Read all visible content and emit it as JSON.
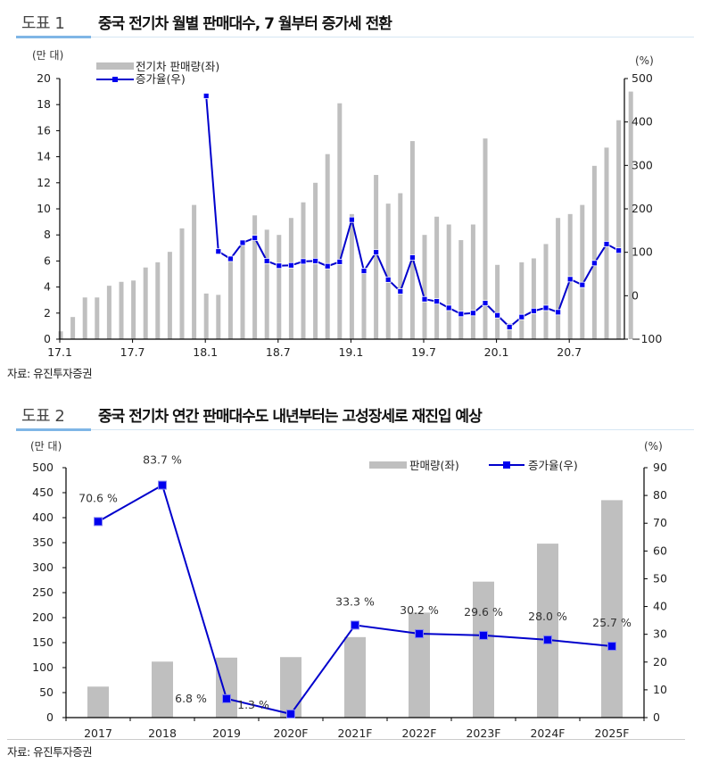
{
  "figures": [
    {
      "number": "도표 1",
      "title": "중국 전기차 월별 판매대수, 7 월부터 증가세 전환",
      "source": "자료: 유진투자증권"
    },
    {
      "number": "도표 2",
      "title": "중국 전기차 연간 판매대수도 내년부터는 고성장세로 재진입 예상",
      "source": "자료: 유진투자증권"
    }
  ],
  "colors": {
    "bar": "#bfbfbf",
    "line": "#0000cc",
    "marker": "#0000ee",
    "axis": "#000000"
  },
  "chart_data": [
    {
      "type": "bar",
      "title": "중국 전기차 월별 판매대수, 7 월부터 증가세 전환",
      "left_unit": "(만 대)",
      "right_unit": "(%)",
      "ylim_left": [
        0,
        20
      ],
      "yticks_left": [
        "0",
        "2",
        "4",
        "6",
        "8",
        "10",
        "12",
        "14",
        "16",
        "18",
        "20"
      ],
      "ylim_right": [
        -100,
        500
      ],
      "yticks_right": [
        "-100",
        "0",
        "100",
        "200",
        "300",
        "400",
        "500"
      ],
      "xtick_labels": [
        "17.1",
        "17.7",
        "18.1",
        "18.7",
        "19.1",
        "19.7",
        "20.1",
        "20.7"
      ],
      "xtick_month_index": [
        0,
        6,
        12,
        18,
        24,
        30,
        36,
        42
      ],
      "legend": [
        "전기차 판매량(좌)",
        "증가율(우)"
      ],
      "legend_position": "top-left",
      "grid": false,
      "months": [
        "17.1",
        "17.2",
        "17.3",
        "17.4",
        "17.5",
        "17.6",
        "17.7",
        "17.8",
        "17.9",
        "17.10",
        "17.11",
        "17.12",
        "18.1",
        "18.2",
        "18.3",
        "18.4",
        "18.5",
        "18.6",
        "18.7",
        "18.8",
        "18.9",
        "18.10",
        "18.11",
        "18.12",
        "19.1",
        "19.2",
        "19.3",
        "19.4",
        "19.5",
        "19.6",
        "19.7",
        "19.8",
        "19.9",
        "19.10",
        "19.11",
        "19.12",
        "20.1",
        "20.2",
        "20.3",
        "20.4",
        "20.5",
        "20.6",
        "20.7",
        "20.8",
        "20.9",
        "20.10",
        "20.11",
        "20.12"
      ],
      "series": [
        {
          "name": "전기차 판매량(좌)",
          "kind": "bar",
          "axis": "left",
          "values": [
            0.6,
            1.7,
            3.2,
            3.2,
            4.1,
            4.4,
            4.5,
            5.5,
            5.9,
            6.7,
            8.5,
            10.3,
            3.5,
            3.4,
            6.0,
            7.3,
            9.5,
            8.4,
            8.0,
            9.3,
            10.5,
            12.0,
            14.2,
            18.1,
            9.6,
            5.3,
            12.6,
            10.4,
            11.2,
            15.2,
            8.0,
            9.4,
            8.8,
            7.6,
            8.8,
            15.4,
            5.7,
            1.2,
            5.9,
            6.2,
            7.3,
            9.3,
            9.6,
            10.3,
            13.3,
            14.7,
            16.8,
            19.0
          ],
          "note": "last bar extends beyond visible area"
        },
        {
          "name": "증가율(우)",
          "kind": "line",
          "axis": "right",
          "values": [
            null,
            null,
            null,
            null,
            null,
            null,
            null,
            null,
            null,
            null,
            null,
            null,
            460,
            102,
            85,
            122,
            133,
            80,
            69,
            70,
            79,
            80,
            68,
            78,
            175,
            57,
            100,
            37,
            10,
            88,
            -8,
            -13,
            -28,
            -42,
            -40,
            -17,
            -45,
            -72,
            -49,
            -35,
            -28,
            -38,
            38,
            25,
            75,
            119,
            104,
            null
          ]
        }
      ]
    },
    {
      "type": "bar",
      "title": "중국 전기차 연간 판매대수도 내년부터는 고성장세로 재진입 예상",
      "left_unit": "(만 대)",
      "right_unit": "(%)",
      "categories": [
        "2017",
        "2018",
        "2019",
        "2020F",
        "2021F",
        "2022F",
        "2023F",
        "2024F",
        "2025F"
      ],
      "ylim_left": [
        0,
        500
      ],
      "yticks_left": [
        "0",
        "50",
        "100",
        "150",
        "200",
        "250",
        "300",
        "350",
        "400",
        "450",
        "500"
      ],
      "ylim_right": [
        0,
        90
      ],
      "yticks_right": [
        "0",
        "10",
        "20",
        "30",
        "40",
        "50",
        "60",
        "70",
        "80",
        "90"
      ],
      "legend": [
        "판매량(좌)",
        "증가율(우)"
      ],
      "legend_position": "top-right",
      "grid": false,
      "series": [
        {
          "name": "판매량(좌)",
          "kind": "bar",
          "axis": "left",
          "values": [
            62,
            112,
            120,
            121,
            161,
            210,
            272,
            348,
            435
          ]
        },
        {
          "name": "증가율(우)",
          "kind": "line",
          "axis": "right",
          "values": [
            70.6,
            83.7,
            6.8,
            1.3,
            33.3,
            30.2,
            29.6,
            28.0,
            25.7
          ],
          "labels": [
            "70.6 %",
            "83.7 %",
            "6.8 %",
            "1.3 %",
            "33.3 %",
            "30.2 %",
            "29.6 %",
            "28.0 %",
            "25.7 %"
          ]
        }
      ]
    }
  ]
}
